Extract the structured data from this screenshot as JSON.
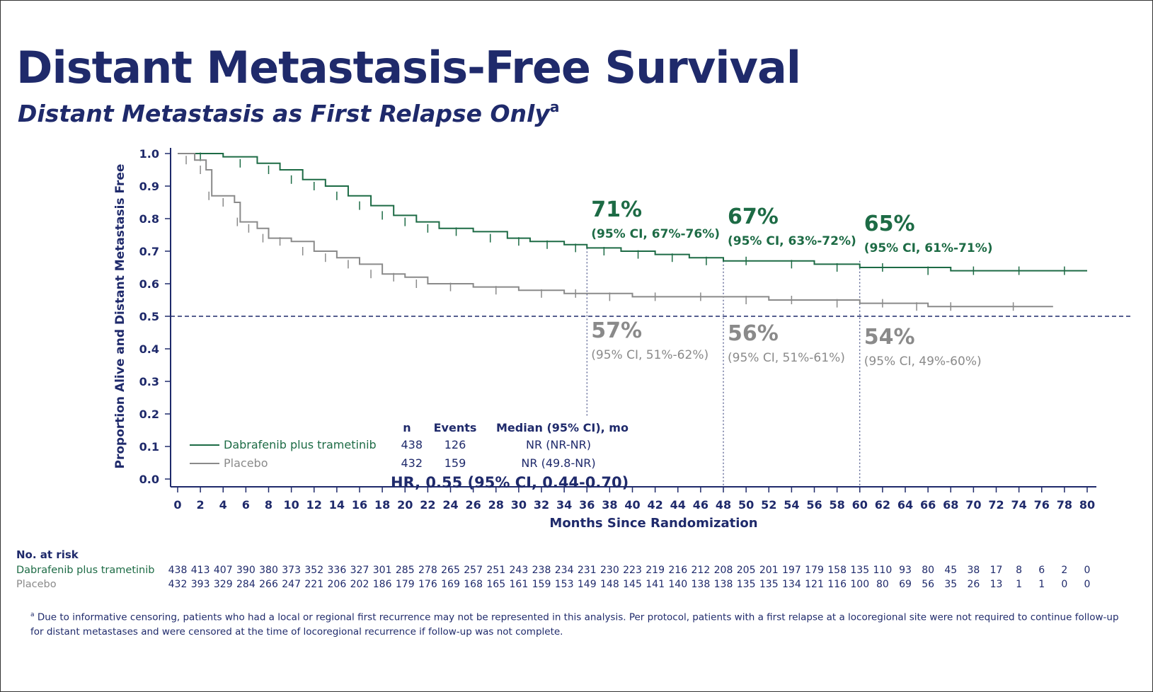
{
  "title": "Distant Metastasis-Free Survival",
  "subtitle": "Distant Metastasis as First Relapse Only",
  "subtitle_marker": "a",
  "colors": {
    "navy": "#1f2a6b",
    "treatment": "#1d6b45",
    "placebo": "#8a8a8a"
  },
  "chart_data": {
    "type": "line",
    "xlabel": "Months Since Randomization",
    "ylabel": "Proportion Alive and Distant Metastasis Free",
    "xlim": [
      0,
      80
    ],
    "ylim": [
      0.0,
      1.0
    ],
    "xticks": [
      "0",
      "2",
      "4",
      "6",
      "8",
      "10",
      "12",
      "14",
      "16",
      "18",
      "20",
      "22",
      "24",
      "26",
      "28",
      "30",
      "32",
      "34",
      "36",
      "38",
      "40",
      "42",
      "44",
      "46",
      "48",
      "50",
      "52",
      "54",
      "56",
      "58",
      "60",
      "62",
      "64",
      "66",
      "68",
      "70",
      "72",
      "74",
      "76",
      "78",
      "80"
    ],
    "yticks": [
      "0.0",
      "0.1",
      "0.2",
      "0.3",
      "0.4",
      "0.5",
      "0.6",
      "0.7",
      "0.8",
      "0.9",
      "1.0"
    ],
    "reference_line_y": 0.5,
    "landmark_x": [
      36,
      48,
      60
    ],
    "series": [
      {
        "name": "Dabrafenib plus trametinib",
        "color": "#1d6b45",
        "x": [
          0,
          4,
          7,
          9,
          11,
          13,
          15,
          17,
          19,
          21,
          23,
          26,
          29,
          31,
          34,
          36,
          39,
          42,
          45,
          48,
          52,
          56,
          60,
          64,
          68,
          72,
          76,
          80
        ],
        "y": [
          1.0,
          0.99,
          0.97,
          0.95,
          0.92,
          0.9,
          0.87,
          0.84,
          0.81,
          0.79,
          0.77,
          0.76,
          0.74,
          0.73,
          0.72,
          0.71,
          0.7,
          0.69,
          0.68,
          0.67,
          0.67,
          0.66,
          0.65,
          0.65,
          0.64,
          0.64,
          0.64,
          0.64
        ]
      },
      {
        "name": "Placebo",
        "color": "#8a8a8a",
        "x": [
          0,
          1.5,
          2.5,
          3,
          5,
          5.5,
          7,
          8,
          10,
          12,
          14,
          16,
          18,
          20,
          22,
          26,
          30,
          34,
          36,
          40,
          44,
          48,
          52,
          56,
          60,
          64,
          66,
          70,
          77
        ],
        "y": [
          1.0,
          0.98,
          0.95,
          0.87,
          0.85,
          0.79,
          0.77,
          0.74,
          0.73,
          0.7,
          0.68,
          0.66,
          0.63,
          0.62,
          0.6,
          0.59,
          0.58,
          0.57,
          0.57,
          0.56,
          0.56,
          0.56,
          0.55,
          0.55,
          0.54,
          0.54,
          0.53,
          0.53,
          0.53
        ]
      }
    ],
    "annotations": [
      {
        "x": 36,
        "series": "Dabrafenib plus trametinib",
        "pct": "71%",
        "ci": "(95% CI, 67%-76%)"
      },
      {
        "x": 48,
        "series": "Dabrafenib plus trametinib",
        "pct": "67%",
        "ci": "(95% CI, 63%-72%)"
      },
      {
        "x": 60,
        "series": "Dabrafenib plus trametinib",
        "pct": "65%",
        "ci": "(95% CI, 61%-71%)"
      },
      {
        "x": 36,
        "series": "Placebo",
        "pct": "57%",
        "ci": "(95% CI, 51%-62%)"
      },
      {
        "x": 48,
        "series": "Placebo",
        "pct": "56%",
        "ci": "(95% CI, 51%-61%)"
      },
      {
        "x": 60,
        "series": "Placebo",
        "pct": "54%",
        "ci": "(95% CI, 49%-60%)"
      }
    ],
    "legend": {
      "placement": "bottom-left",
      "headers": [
        "n",
        "Events",
        "Median (95% CI), mo"
      ],
      "rows": [
        {
          "label": "Dabrafenib plus trametinib",
          "n": "438",
          "events": "126",
          "median": "NR (NR-NR)"
        },
        {
          "label": "Placebo",
          "n": "432",
          "events": "159",
          "median": "NR (49.8-NR)"
        }
      ],
      "hr": "HR, 0.55 (95% CI, 0.44-0.70)"
    },
    "at_risk": {
      "heading": "No. at risk",
      "rows": [
        {
          "label": "Dabrafenib plus trametinib",
          "values": [
            "438",
            "413",
            "407",
            "390",
            "380",
            "373",
            "352",
            "336",
            "327",
            "301",
            "285",
            "278",
            "265",
            "257",
            "251",
            "243",
            "238",
            "234",
            "231",
            "230",
            "223",
            "219",
            "216",
            "212",
            "208",
            "205",
            "201",
            "197",
            "179",
            "158",
            "135",
            "110",
            "93",
            "80",
            "45",
            "38",
            "17",
            "8",
            "6",
            "2",
            "0"
          ]
        },
        {
          "label": "Placebo",
          "values": [
            "432",
            "393",
            "329",
            "284",
            "266",
            "247",
            "221",
            "206",
            "202",
            "186",
            "179",
            "176",
            "169",
            "168",
            "165",
            "161",
            "159",
            "153",
            "149",
            "148",
            "145",
            "141",
            "140",
            "138",
            "138",
            "135",
            "135",
            "134",
            "121",
            "116",
            "100",
            "80",
            "69",
            "56",
            "35",
            "26",
            "13",
            "1",
            "1",
            "0",
            "0"
          ]
        }
      ]
    }
  },
  "footnote_marker": "a",
  "footnote": "Due to informative censoring, patients who had a local or regional first recurrence may not be represented in this analysis. Per protocol, patients with a first relapse at a locoregional site were not required to continue follow-up for distant metastases and were censored at the time of locoregional recurrence if follow-up was not complete."
}
